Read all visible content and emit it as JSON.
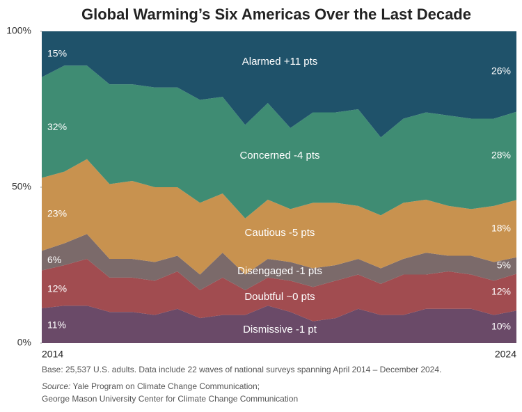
{
  "chart_data": {
    "type": "stacked_area",
    "title": "Global Warming’s Six Americas Over the Last Decade",
    "categories": [
      "2014",
      null,
      null,
      null,
      null,
      null,
      null,
      null,
      null,
      null,
      null,
      null,
      null,
      null,
      null,
      null,
      null,
      null,
      null,
      null,
      null,
      "2024"
    ],
    "ylim": [
      0,
      100
    ],
    "yticks": [
      {
        "value": 0,
        "label": "0%"
      },
      {
        "value": 50,
        "label": "50%"
      },
      {
        "value": 100,
        "label": "100%"
      }
    ],
    "series": [
      {
        "name": "Dismissive -1 pt",
        "color": "#6a4a68",
        "values": [
          11.2,
          12,
          12,
          10,
          10,
          9,
          11,
          8,
          9,
          9,
          12,
          10,
          7,
          8,
          11,
          9,
          9,
          11,
          11,
          11,
          9,
          10.4
        ],
        "value_labels": [
          "11%",
          null,
          null,
          null,
          null,
          null,
          null,
          null,
          null,
          null,
          null,
          null,
          null,
          null,
          null,
          null,
          null,
          null,
          null,
          null,
          null,
          "10%"
        ]
      },
      {
        "name": "Doubtful ~0 pts",
        "color": "#a14c50",
        "values": [
          12.1,
          13,
          15,
          11,
          11,
          11,
          12,
          9,
          12,
          8,
          9,
          10,
          11,
          12,
          11,
          10,
          13,
          11,
          12,
          11,
          11,
          11.8
        ],
        "value_labels": [
          "12%",
          null,
          null,
          null,
          null,
          null,
          null,
          null,
          null,
          null,
          null,
          null,
          null,
          null,
          null,
          null,
          null,
          null,
          null,
          null,
          null,
          "12%"
        ]
      },
      {
        "name": "Disengaged -1 pts",
        "color": "#7b6a6a",
        "values": [
          6.3,
          7,
          8,
          6,
          6,
          6,
          5,
          5,
          8,
          5,
          6,
          6,
          6,
          5,
          5,
          5,
          5,
          7,
          5,
          6,
          6,
          5.3
        ],
        "value_labels": [
          "6%",
          null,
          null,
          null,
          null,
          null,
          null,
          null,
          null,
          null,
          null,
          null,
          null,
          null,
          null,
          null,
          null,
          null,
          null,
          null,
          null,
          "5%"
        ]
      },
      {
        "name": "Cautious -5 pts",
        "color": "#c8924f",
        "values": [
          23.4,
          23,
          24,
          24,
          25,
          24,
          22,
          23,
          19,
          18,
          19,
          17,
          21,
          20,
          17,
          17,
          18,
          17,
          16,
          15,
          18,
          18.4
        ],
        "value_labels": [
          "23%",
          null,
          null,
          null,
          null,
          null,
          null,
          null,
          null,
          null,
          null,
          null,
          null,
          null,
          null,
          null,
          null,
          null,
          null,
          null,
          null,
          "18%"
        ]
      },
      {
        "name": "Concerned -4 pts",
        "color": "#3f8c73",
        "values": [
          32.3,
          34,
          30,
          32,
          31,
          32,
          32,
          33,
          31,
          30,
          31,
          26,
          29,
          29,
          31,
          25,
          27,
          28,
          29,
          29,
          28,
          28.3
        ],
        "value_labels": [
          "32%",
          null,
          null,
          null,
          null,
          null,
          null,
          null,
          null,
          null,
          null,
          null,
          null,
          null,
          null,
          null,
          null,
          null,
          null,
          null,
          null,
          "28%"
        ]
      },
      {
        "name": "Alarmed +11 pts",
        "color": "#1f526a",
        "values": [
          14.7,
          11,
          11,
          17,
          17,
          18,
          18,
          22,
          21,
          30,
          23,
          31,
          26,
          26,
          25,
          34,
          28,
          26,
          27,
          28,
          28,
          25.8
        ],
        "value_labels": [
          "15%",
          null,
          null,
          null,
          null,
          null,
          null,
          null,
          null,
          null,
          null,
          null,
          null,
          null,
          null,
          null,
          null,
          null,
          null,
          null,
          null,
          "26%"
        ]
      }
    ],
    "footnote": "Base: 25,537 U.S. adults. Data include 22 waves of national surveys spanning April 2014 – December 2024.",
    "source_label": "Source:",
    "source_lines": [
      " Yale Program on Climate Change Communication;",
      "George Mason University Center for Climate Change Communication"
    ]
  }
}
